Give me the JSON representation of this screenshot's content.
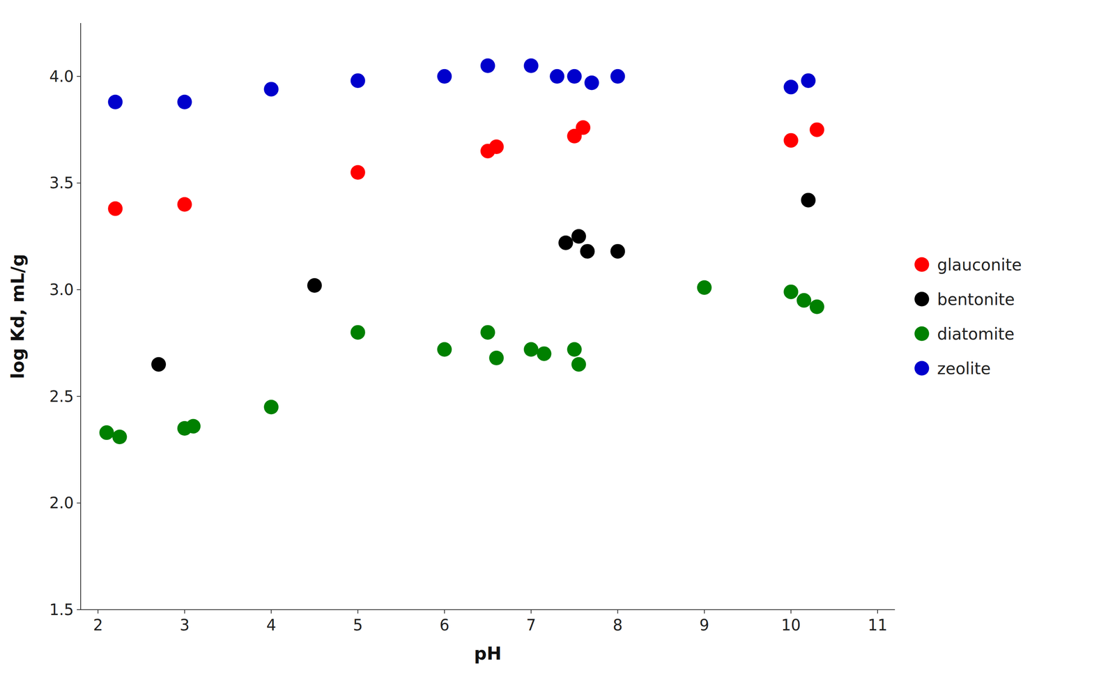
{
  "chart_data": {
    "type": "scatter",
    "x_label": "pH",
    "y_label": "log Kd, mL/g",
    "series": [
      {
        "name": "glauconite",
        "color": "#ff0000",
        "x": [
          2.2,
          3.0,
          5.0,
          6.5,
          6.6,
          7.5,
          7.6,
          10.0,
          10.3
        ],
        "values": [
          3.38,
          3.4,
          3.55,
          3.65,
          3.67,
          3.72,
          3.76,
          3.7,
          3.75
        ]
      },
      {
        "name": "bentonite",
        "color": "#000000",
        "x": [
          2.7,
          4.5,
          7.4,
          7.55,
          7.65,
          8.0,
          10.2
        ],
        "values": [
          2.65,
          3.02,
          3.22,
          3.25,
          3.18,
          3.18,
          3.42
        ]
      },
      {
        "name": "diatomite",
        "color": "#008000",
        "x": [
          2.1,
          2.25,
          3.0,
          3.1,
          4.0,
          5.0,
          6.0,
          6.5,
          6.6,
          7.0,
          7.15,
          7.5,
          7.55,
          9.0,
          10.0,
          10.15,
          10.3
        ],
        "values": [
          2.33,
          2.31,
          2.35,
          2.36,
          2.45,
          2.8,
          2.72,
          2.8,
          2.68,
          2.72,
          2.7,
          2.72,
          2.65,
          3.01,
          2.99,
          2.95,
          2.92
        ]
      },
      {
        "name": "zeolite",
        "color": "#0000cc",
        "x": [
          2.2,
          3.0,
          4.0,
          5.0,
          6.0,
          6.5,
          7.0,
          7.3,
          7.5,
          7.7,
          8.0,
          10.0,
          10.2
        ],
        "values": [
          3.88,
          3.88,
          3.94,
          3.98,
          4.0,
          4.05,
          4.05,
          4.0,
          4.0,
          3.97,
          4.0,
          3.95,
          3.98
        ]
      }
    ],
    "xlim": [
      1.8,
      11.2
    ],
    "ylim": [
      1.5,
      4.25
    ],
    "xticks": [
      2,
      3,
      4,
      5,
      6,
      7,
      8,
      9,
      10,
      11
    ],
    "yticks": [
      1.5,
      {
        "value": 2.0,
        "label": "2.0"
      },
      2.5,
      {
        "value": 3.0,
        "label": "3.0"
      },
      3.5,
      {
        "value": 4.0,
        "label": "4.0"
      }
    ],
    "legend": "right",
    "grid": false
  }
}
